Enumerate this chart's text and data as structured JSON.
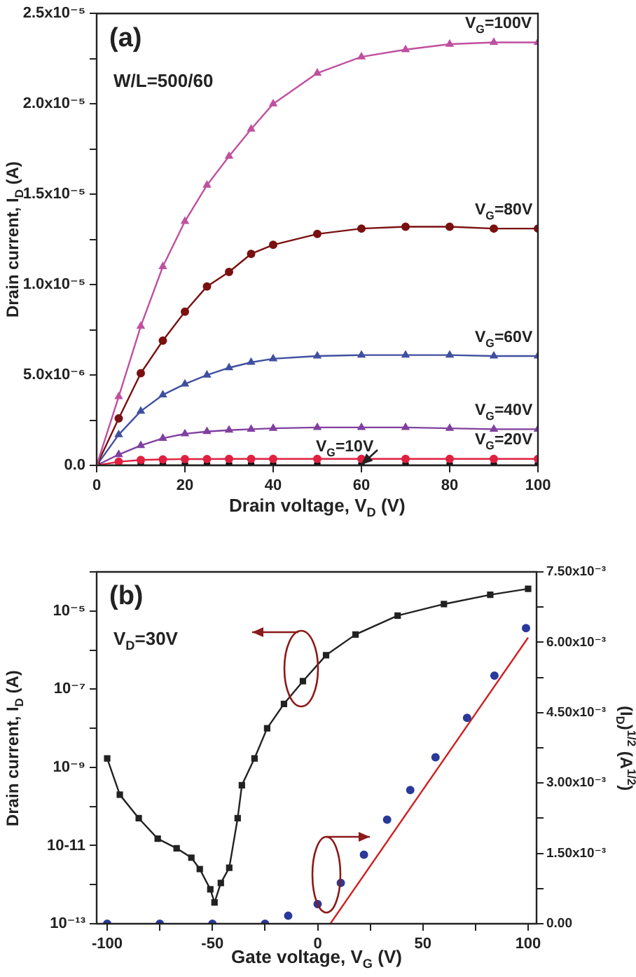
{
  "chart_data": [
    {
      "type": "line",
      "xlabel": "Drain voltage, V$_{D}$ (V)",
      "ylabel": "Drain current, I$_{D}$ (A)",
      "annotations": [
        "(a)",
        "W/L=500/60"
      ],
      "x": [
        0,
        5,
        10,
        15,
        20,
        25,
        30,
        35,
        40,
        50,
        60,
        70,
        80,
        90,
        100
      ],
      "series": [
        {
          "name": "V$_{G}$=100V",
          "color": "#c050a0",
          "marker": "triangle",
          "values": [
            0,
            3.8e-06,
            7.7e-06,
            1.1e-05,
            1.35e-05,
            1.55e-05,
            1.71e-05,
            1.86e-05,
            2e-05,
            2.17e-05,
            2.26e-05,
            2.3e-05,
            2.33e-05,
            2.34e-05,
            2.34e-05
          ]
        },
        {
          "name": "V$_{G}$=80V",
          "color": "#7a1010",
          "marker": "circle",
          "values": [
            0,
            2.6e-06,
            5.1e-06,
            6.9e-06,
            8.5e-06,
            9.9e-06,
            1.07e-05,
            1.17e-05,
            1.22e-05,
            1.28e-05,
            1.31e-05,
            1.32e-05,
            1.32e-05,
            1.31e-05,
            1.31e-05
          ]
        },
        {
          "name": "V$_{G}$=60V",
          "color": "#4050a0",
          "marker": "triangle",
          "values": [
            0,
            1.7e-06,
            3e-06,
            3.9e-06,
            4.5e-06,
            5e-06,
            5.4e-06,
            5.7e-06,
            5.9e-06,
            6.05e-06,
            6.1e-06,
            6.1e-06,
            6.1e-06,
            6.05e-06,
            6.05e-06
          ]
        },
        {
          "name": "V$_{G}$=40V",
          "color": "#8040a0",
          "marker": "triangle",
          "values": [
            0,
            6e-07,
            1.1e-06,
            1.5e-06,
            1.75e-06,
            1.87e-06,
            1.95e-06,
            2e-06,
            2.05e-06,
            2.1e-06,
            2.1e-06,
            2.1e-06,
            2.05e-06,
            2e-06,
            2e-06
          ]
        },
        {
          "name": "V$_{G}$=20V",
          "color": "#e02040",
          "marker": "circle",
          "values": [
            0,
            2e-07,
            3e-07,
            3.3e-07,
            3.5e-07,
            3.5e-07,
            3.6e-07,
            3.6e-07,
            3.6e-07,
            3.6e-07,
            3.6e-07,
            3.6e-07,
            3.6e-07,
            3.6e-07,
            3.6e-07
          ]
        },
        {
          "name": "V$_{G}$=10V",
          "color": "#111111",
          "marker": "square",
          "values": [
            0,
            0,
            0,
            0,
            0,
            0,
            0,
            0,
            0,
            0,
            0,
            0,
            0,
            0,
            0
          ]
        }
      ],
      "xlim": [
        0,
        100
      ],
      "xticks": [
        0,
        20,
        40,
        60,
        80,
        100
      ],
      "ylim": [
        0,
        2.5e-05
      ],
      "yticks": [
        {
          "value": 0,
          "label": "0.0"
        },
        {
          "value": 2.5e-06,
          "label": null
        },
        {
          "value": 5e-06,
          "label": "5.0x10⁻⁶"
        },
        {
          "value": 7.5e-06,
          "label": null
        },
        {
          "value": 1e-05,
          "label": "1.0x10⁻⁵"
        },
        {
          "value": 1.25e-05,
          "label": null
        },
        {
          "value": 1.5e-05,
          "label": "1.5x10⁻⁵"
        },
        {
          "value": 1.75e-05,
          "label": null
        },
        {
          "value": 2e-05,
          "label": "2.0x10⁻⁵"
        },
        {
          "value": 2.25e-05,
          "label": null
        },
        {
          "value": 2.5e-05,
          "label": "2.5x10⁻⁵"
        }
      ],
      "legend": false
    },
    {
      "type": "line",
      "xlabel": "Gate voltage, V$_{G}$ (V)",
      "ylabel": "Drain current, I$_{D}$ (A)",
      "y2label": "(I$_{D}$)$^{1/2}$ (A$^{1/2}$)",
      "annotations": [
        "(b)",
        "V$_{D}$=30V"
      ],
      "series": [
        {
          "color": "#222222",
          "marker": "square",
          "x": [
            -100,
            -94,
            -85,
            -76,
            -67,
            -60,
            -56,
            -51,
            -49,
            -46,
            -42,
            -38,
            -36,
            -30,
            -24,
            -16,
            -7,
            4,
            18,
            38,
            60,
            82,
            100
          ],
          "values": [
            1.7e-09,
            2e-10,
            5e-11,
            1.5e-11,
            8.5e-12,
            4.9e-12,
            2.5e-12,
            7.6e-13,
            3.5e-13,
            1.1e-12,
            2.7e-12,
            5e-11,
            3.5e-10,
            1.7e-09,
            1e-08,
            4.2e-08,
            1.6e-07,
            7.4e-07,
            2.5e-06,
            7.6e-06,
            1.5e-05,
            2.6e-05,
            3.7e-05
          ]
        },
        {
          "type": "scatter",
          "color": "#2a3a9a",
          "marker": "circle",
          "axis": "y2",
          "x": [
            -100,
            -75,
            -50,
            -25,
            -14,
            0,
            11,
            22,
            33,
            44,
            56,
            71,
            84,
            99
          ],
          "values": [
            0,
            0,
            0,
            0,
            0.00017,
            0.00042,
            0.00087,
            0.00147,
            0.00222,
            0.00285,
            0.00355,
            0.00439,
            0.00529,
            0.0063
          ]
        },
        {
          "color": "#d02020",
          "marker": "none",
          "axis": "y2",
          "x": [
            6,
            100
          ],
          "values": [
            0,
            0.0061
          ]
        }
      ],
      "xlim": [
        -105,
        104
      ],
      "xticks": [
        -100,
        {
          "value": -75,
          "label": null
        },
        -50,
        {
          "value": -25,
          "label": null
        },
        0,
        {
          "value": 25,
          "label": null
        },
        50,
        {
          "value": 75,
          "label": null
        },
        100
      ],
      "log": "y",
      "ylim": [
        1e-13,
        0.0001
      ],
      "yticks": [
        {
          "value": 1e-13,
          "label": "10⁻¹³"
        },
        {
          "value": 1e-12,
          "label": null
        },
        {
          "value": 1e-11,
          "label": "10-11"
        },
        {
          "value": 1e-10,
          "label": null
        },
        {
          "value": 1e-09,
          "label": "10⁻⁹"
        },
        {
          "value": 1e-08,
          "label": null
        },
        {
          "value": 1e-07,
          "label": "10⁻⁷"
        },
        {
          "value": 1e-06,
          "label": null
        },
        {
          "value": 1e-05,
          "label": "10⁻⁵"
        },
        {
          "value": 0.0001,
          "label": null
        }
      ],
      "y2lim": [
        0,
        0.0075
      ],
      "y2ticks": [
        {
          "value": 0,
          "label": "0.00"
        },
        {
          "value": 0.00075,
          "label": null
        },
        {
          "value": 0.0015,
          "label": "1.50x10⁻³"
        },
        {
          "value": 0.00225,
          "label": null
        },
        {
          "value": 0.003,
          "label": "3.00x10⁻³"
        },
        {
          "value": 0.00375,
          "label": null
        },
        {
          "value": 0.0045,
          "label": "4.50x10⁻³"
        },
        {
          "value": 0.00525,
          "label": null
        },
        {
          "value": 0.006,
          "label": "6.00x10⁻³"
        },
        {
          "value": 0.00675,
          "label": null
        },
        {
          "value": 0.0075,
          "label": "7.50x10⁻³"
        }
      ],
      "legend": false
    }
  ]
}
